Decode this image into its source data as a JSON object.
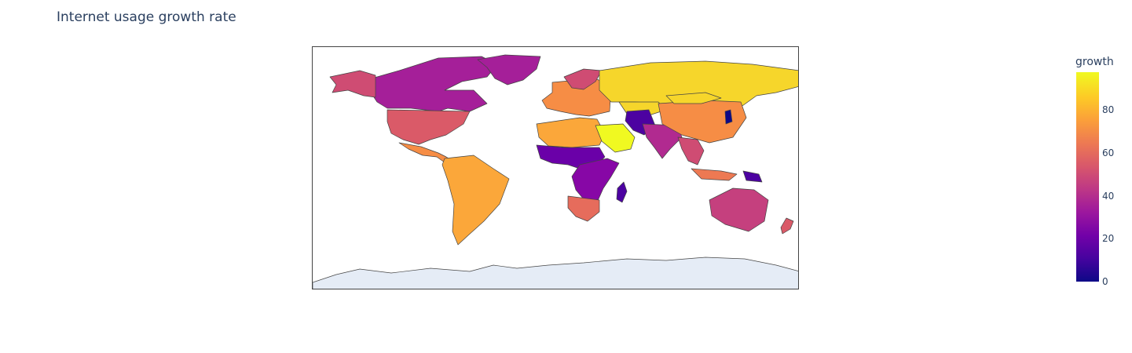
{
  "title": "Internet usage growth rate",
  "colorbar": {
    "title": "growth",
    "tick_labels": [
      "80",
      "60",
      "40",
      "20",
      "0"
    ],
    "range": [
      0,
      97
    ],
    "colorscale": [
      "#0d0887",
      "#46039f",
      "#7201a8",
      "#9c179e",
      "#bd3786",
      "#d8576b",
      "#ed7953",
      "#fb9f3a",
      "#fdca26",
      "#f0f921"
    ]
  },
  "map": {
    "projection": "equirectangular",
    "land_color": "#e5ecf6",
    "border_color": "#444444",
    "regions": [
      {
        "name": "Canada",
        "growth": 40,
        "color": "#a51f99"
      },
      {
        "name": "Greenland",
        "growth": 36,
        "color": "#a51f99"
      },
      {
        "name": "Alaska",
        "growth": 50,
        "color": "#cf4c73"
      },
      {
        "name": "United States",
        "growth": 55,
        "color": "#da5a68"
      },
      {
        "name": "Mexico and Central America",
        "growth": 66,
        "color": "#f68d45"
      },
      {
        "name": "South America",
        "growth": 75,
        "color": "#fba73a"
      },
      {
        "name": "Western Europe",
        "growth": 66,
        "color": "#f68d45"
      },
      {
        "name": "Scandinavia",
        "growth": 50,
        "color": "#cf4c73"
      },
      {
        "name": "Russia",
        "growth": 90,
        "color": "#f6d62b"
      },
      {
        "name": "North Africa",
        "growth": 72,
        "color": "#fba73a"
      },
      {
        "name": "Saudi Arabia",
        "growth": 97,
        "color": "#f0f921"
      },
      {
        "name": "Sahel and Central Africa",
        "growth": 22,
        "color": "#6a00a8"
      },
      {
        "name": "East Africa",
        "growth": 25,
        "color": "#8707a6"
      },
      {
        "name": "Southern Africa",
        "growth": 60,
        "color": "#e66c5c"
      },
      {
        "name": "Madagascar",
        "growth": 14,
        "color": "#4c02a1"
      },
      {
        "name": "Kazakhstan",
        "growth": 86,
        "color": "#f6d62b"
      },
      {
        "name": "Afghanistan and Pakistan",
        "growth": 15,
        "color": "#4c02a1"
      },
      {
        "name": "India",
        "growth": 40,
        "color": "#b12a90"
      },
      {
        "name": "China",
        "growth": 68,
        "color": "#f68d45"
      },
      {
        "name": "Mongolia",
        "growth": 88,
        "color": "#f6d62b"
      },
      {
        "name": "Korea",
        "growth": 2,
        "color": "#0d0887"
      },
      {
        "name": "Southeast Asia",
        "growth": 50,
        "color": "#cf4c73"
      },
      {
        "name": "Indonesia",
        "growth": 62,
        "color": "#ed7953"
      },
      {
        "name": "Papua New Guinea",
        "growth": 12,
        "color": "#4c02a1"
      },
      {
        "name": "Australia",
        "growth": 46,
        "color": "#c5407e"
      },
      {
        "name": "New Zealand",
        "growth": 55,
        "color": "#da5a68"
      },
      {
        "name": "Antarctica",
        "growth": null,
        "color": "#e5ecf6"
      }
    ]
  }
}
